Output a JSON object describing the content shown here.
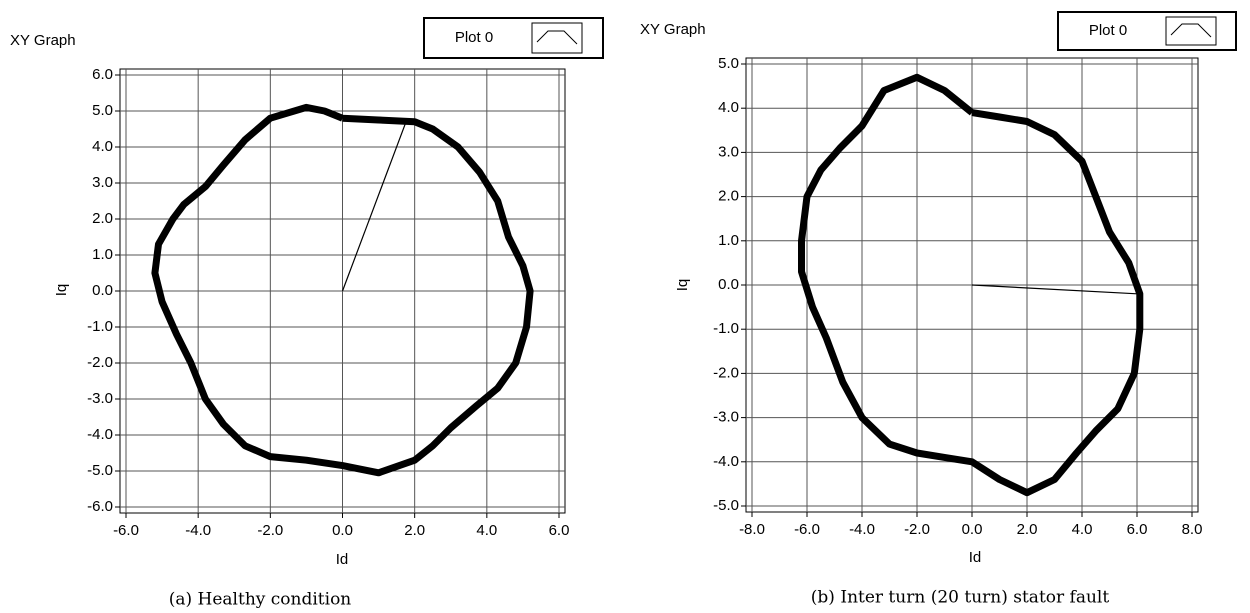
{
  "chart_data": [
    {
      "type": "line",
      "title": "XY Graph",
      "xlabel": "Id",
      "ylabel": "Iq",
      "caption": "(a) Healthy condition",
      "xlim": [
        -6,
        6
      ],
      "ylim": [
        -6,
        6
      ],
      "grid": true,
      "xticks": [
        {
          "value": -6,
          "label": "-6.0"
        },
        {
          "value": -4,
          "label": "-4.0"
        },
        {
          "value": -2,
          "label": "-2.0"
        },
        {
          "value": 0,
          "label": "0.0"
        },
        {
          "value": 2,
          "label": "2.0"
        },
        {
          "value": 4,
          "label": "4.0"
        },
        {
          "value": 6,
          "label": "6.0"
        }
      ],
      "yticks": [
        {
          "value": -6,
          "label": "-6.0"
        },
        {
          "value": -5,
          "label": "-5.0"
        },
        {
          "value": -4,
          "label": "-4.0"
        },
        {
          "value": -3,
          "label": "-3.0"
        },
        {
          "value": -2,
          "label": "-2.0"
        },
        {
          "value": -1,
          "label": "-1.0"
        },
        {
          "value": 0,
          "label": "0.0"
        },
        {
          "value": 1,
          "label": "1.0"
        },
        {
          "value": 2,
          "label": "2.0"
        },
        {
          "value": 3,
          "label": "3.0"
        },
        {
          "value": 4,
          "label": "4.0"
        },
        {
          "value": 5,
          "label": "5.0"
        },
        {
          "value": 6,
          "label": "6.0"
        }
      ],
      "x": [
        0,
        1,
        2,
        2.5,
        3.2,
        3.8,
        4.3,
        4.6,
        5,
        5.2,
        5.1,
        4.8,
        4.3,
        3.7,
        3,
        2.5,
        2,
        1,
        0,
        -1,
        -2,
        -2.7,
        -3.3,
        -3.8,
        -4.2,
        -4.6,
        -5,
        -5.2,
        -5.1,
        -4.7,
        -4.4,
        -3.8,
        -3.3,
        -2.7,
        -2,
        -1,
        -0.5,
        0,
        null,
        0,
        1.8
      ],
      "series": [
        {
          "name": "Plot 0",
          "color": "#000000",
          "values": [
            4.8,
            4.75,
            4.7,
            4.5,
            4,
            3.3,
            2.5,
            1.5,
            0.7,
            0,
            -1,
            -2,
            -2.7,
            -3.2,
            -3.8,
            -4.3,
            -4.7,
            -5.05,
            -4.85,
            -4.7,
            -4.6,
            -4.3,
            -3.7,
            -3,
            -2,
            -1.2,
            -0.3,
            0.5,
            1.3,
            2,
            2.4,
            2.9,
            3.5,
            4.2,
            4.8,
            5.1,
            5,
            4.8,
            null,
            0,
            4.8
          ]
        }
      ]
    },
    {
      "type": "line",
      "title": "XY Graph",
      "xlabel": "Id",
      "ylabel": "Iq",
      "caption": "(b) Inter turn (20 turn) stator fault",
      "xlim": [
        -8,
        8
      ],
      "ylim": [
        -5,
        5
      ],
      "grid": true,
      "xticks": [
        {
          "value": -8,
          "label": "-8.0"
        },
        {
          "value": -6,
          "label": "-6.0"
        },
        {
          "value": -4,
          "label": "-4.0"
        },
        {
          "value": -2,
          "label": "-2.0"
        },
        {
          "value": 0,
          "label": "0.0"
        },
        {
          "value": 2,
          "label": "2.0"
        },
        {
          "value": 4,
          "label": "4.0"
        },
        {
          "value": 6,
          "label": "6.0"
        },
        {
          "value": 8,
          "label": "8.0"
        }
      ],
      "yticks": [
        {
          "value": -5,
          "label": "-5.0"
        },
        {
          "value": -4,
          "label": "-4.0"
        },
        {
          "value": -3,
          "label": "-3.0"
        },
        {
          "value": -2,
          "label": "-2.0"
        },
        {
          "value": -1,
          "label": "-1.0"
        },
        {
          "value": 0,
          "label": "0.0"
        },
        {
          "value": 1,
          "label": "1.0"
        },
        {
          "value": 2,
          "label": "2.0"
        },
        {
          "value": 3,
          "label": "3.0"
        },
        {
          "value": 4,
          "label": "4.0"
        },
        {
          "value": 5,
          "label": "5.0"
        }
      ],
      "x": [
        0,
        1,
        2,
        3,
        4,
        4.5,
        5,
        5.7,
        6.1,
        6.1,
        5.9,
        5.3,
        4.5,
        3.8,
        3,
        2,
        1,
        0,
        -1,
        -2,
        -3,
        -4,
        -4.7,
        -5.3,
        -5.8,
        -6.2,
        -6.2,
        -6,
        -5.5,
        -4.8,
        -4,
        -3.2,
        -2,
        -1,
        0,
        null,
        0,
        6
      ],
      "series": [
        {
          "name": "Plot 0",
          "color": "#000000",
          "values": [
            3.9,
            3.8,
            3.7,
            3.4,
            2.8,
            2,
            1.2,
            0.5,
            -0.2,
            -1,
            -2,
            -2.8,
            -3.3,
            -3.8,
            -4.4,
            -4.7,
            -4.4,
            -4,
            -3.9,
            -3.8,
            -3.6,
            -3,
            -2.2,
            -1.2,
            -0.5,
            0.3,
            1,
            2,
            2.6,
            3.1,
            3.6,
            4.4,
            4.7,
            4.4,
            3.9,
            null,
            0,
            -0.2
          ]
        }
      ]
    }
  ]
}
